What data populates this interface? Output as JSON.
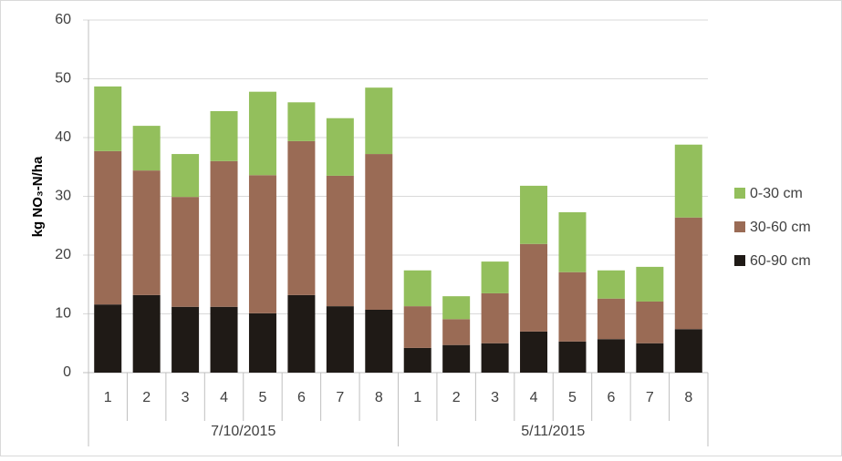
{
  "chart_data": {
    "type": "stacked_bar",
    "y_label": "kg NO₃-N/ha",
    "categories": [
      "1",
      "2",
      "3",
      "4",
      "5",
      "6",
      "7",
      "8",
      "1",
      "2",
      "3",
      "4",
      "5",
      "6",
      "7",
      "8"
    ],
    "groups": [
      "7/10/2015",
      "5/11/2015"
    ],
    "series": [
      {
        "name": "60-90 cm",
        "color": "#1f1a16",
        "values": [
          11.6,
          13.2,
          11.2,
          11.2,
          10.1,
          13.2,
          11.3,
          10.7,
          4.2,
          4.7,
          5.0,
          7.0,
          5.3,
          5.7,
          5.0,
          7.4
        ]
      },
      {
        "name": "30-60 cm",
        "color": "#9a6b55",
        "values": [
          26.1,
          21.2,
          18.7,
          24.8,
          23.5,
          26.2,
          22.2,
          26.5,
          7.1,
          4.4,
          8.5,
          14.9,
          11.8,
          6.9,
          7.1,
          19.0
        ]
      },
      {
        "name": "0-30 cm",
        "color": "#93bf5c",
        "values": [
          11.0,
          7.6,
          7.3,
          8.5,
          14.2,
          6.6,
          9.8,
          11.3,
          6.1,
          3.9,
          5.4,
          9.9,
          10.2,
          4.8,
          5.9,
          12.4
        ]
      }
    ],
    "ylim": [
      0,
      60
    ],
    "yticks": [
      0,
      10,
      20,
      30,
      40,
      50,
      60
    ],
    "grid": true,
    "legend": "right"
  }
}
